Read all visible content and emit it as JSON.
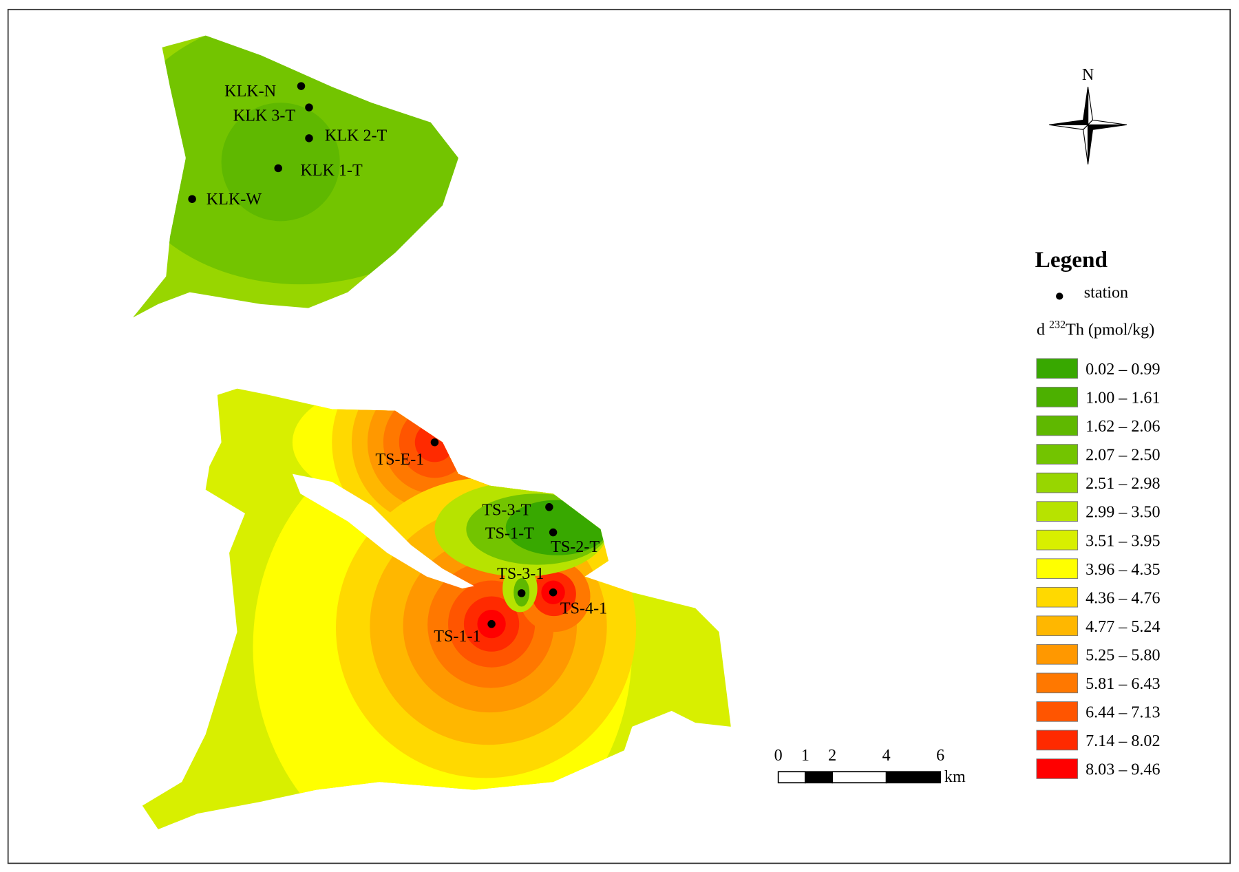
{
  "map": {
    "stations": [
      "KLK-N",
      "KLK 3-T",
      "KLK 2-T",
      "KLK 1-T",
      "KLK-W",
      "TS-E-1",
      "TS-3-T",
      "TS-1-T",
      "TS-2-T",
      "TS-3-1",
      "TS-4-1",
      "TS-1-1"
    ],
    "north": "N",
    "legend": {
      "title": "Legend",
      "station_label": "station",
      "variable": {
        "prefix": "d",
        "superscript": "232",
        "suffix": "Th (pmol/kg)"
      },
      "classes": [
        {
          "label": "0.02 – 0.99",
          "color": "#38a800"
        },
        {
          "label": "1.00 – 1.61",
          "color": "#4cb000"
        },
        {
          "label": "1.62 – 2.06",
          "color": "#5fb800"
        },
        {
          "label": "2.07 – 2.50",
          "color": "#73c400"
        },
        {
          "label": "2.51 – 2.98",
          "color": "#98d600"
        },
        {
          "label": "2.99 – 3.50",
          "color": "#b7e300"
        },
        {
          "label": "3.51 – 3.95",
          "color": "#d8ef00"
        },
        {
          "label": "3.96 – 4.35",
          "color": "#ffff00"
        },
        {
          "label": "4.36 – 4.76",
          "color": "#ffd900"
        },
        {
          "label": "4.77 – 5.24",
          "color": "#ffb700"
        },
        {
          "label": "5.25 – 5.80",
          "color": "#ff9800"
        },
        {
          "label": "5.81 – 6.43",
          "color": "#ff7800"
        },
        {
          "label": "6.44 – 7.13",
          "color": "#ff5500"
        },
        {
          "label": "7.14 – 8.02",
          "color": "#ff2a00"
        },
        {
          "label": "8.03 – 9.46",
          "color": "#ff0000"
        }
      ]
    },
    "scale_bar": {
      "ticks": [
        0,
        1,
        2,
        4,
        6
      ],
      "unit": "km"
    }
  }
}
